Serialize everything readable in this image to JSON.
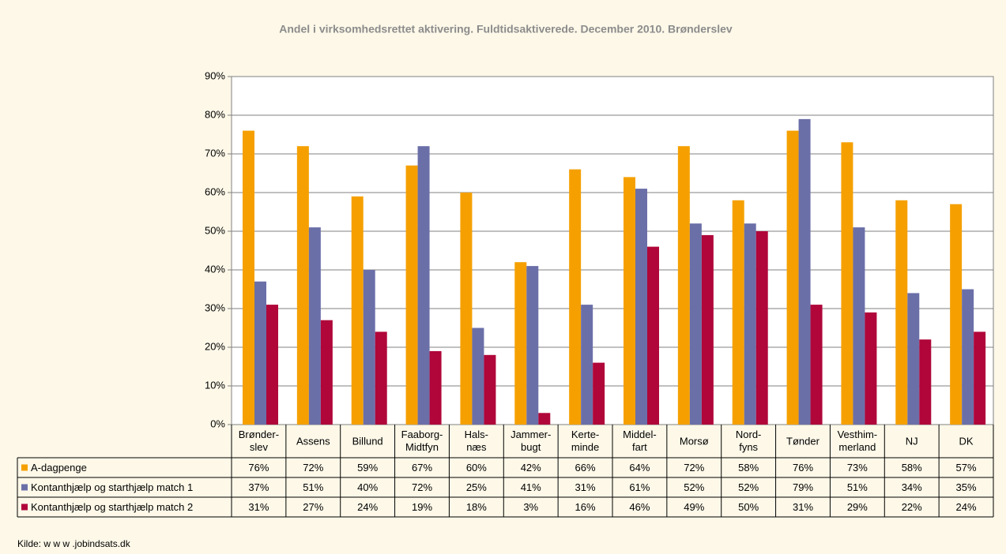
{
  "chart_data": {
    "type": "bar",
    "title": "Andel i virksomhedsrettet aktivering. Fuldtidsaktiverede. December 2010. Brønderslev",
    "categories": [
      "Brønder-\nslev",
      "Assens",
      "Billund",
      "Faaborg-\nMidtfyn",
      "Hals-\nnæs",
      "Jammer-\nbugt",
      "Kerte-\nminde",
      "Middel-\nfart",
      "Morsø",
      "Nord-\nfyns",
      "Tønder",
      "Vesthim-\nmerland",
      "NJ",
      "DK"
    ],
    "series": [
      {
        "name": "A-dagpenge",
        "color": "#f5a000",
        "values": [
          76,
          72,
          59,
          67,
          60,
          42,
          66,
          64,
          72,
          58,
          76,
          73,
          58,
          57
        ],
        "value_labels": [
          "76%",
          "72%",
          "59%",
          "67%",
          "60%",
          "42%",
          "66%",
          "64%",
          "72%",
          "58%",
          "76%",
          "73%",
          "58%",
          "57%"
        ]
      },
      {
        "name": "Kontanthjælp og starthjælp match 1",
        "color": "#6b6fa8",
        "values": [
          37,
          51,
          40,
          72,
          25,
          41,
          31,
          61,
          52,
          52,
          79,
          51,
          34,
          35
        ],
        "value_labels": [
          "37%",
          "51%",
          "40%",
          "72%",
          "25%",
          "41%",
          "31%",
          "61%",
          "52%",
          "52%",
          "79%",
          "51%",
          "34%",
          "35%"
        ]
      },
      {
        "name": "Kontanthjælp og starthjælp match 2",
        "color": "#b0063a",
        "values": [
          31,
          27,
          24,
          19,
          18,
          3,
          16,
          46,
          49,
          50,
          31,
          29,
          22,
          24
        ],
        "value_labels": [
          "31%",
          "27%",
          "24%",
          "19%",
          "18%",
          "3%",
          "16%",
          "46%",
          "49%",
          "50%",
          "31%",
          "29%",
          "22%",
          "24%"
        ]
      }
    ],
    "ylim": [
      0,
      90
    ],
    "yticks": [
      {
        "value": 0,
        "label": "0%"
      },
      {
        "value": 10,
        "label": "10%"
      },
      {
        "value": 20,
        "label": "20%"
      },
      {
        "value": 30,
        "label": "30%"
      },
      {
        "value": 40,
        "label": "40%"
      },
      {
        "value": 50,
        "label": "50%"
      },
      {
        "value": 60,
        "label": "60%"
      },
      {
        "value": 70,
        "label": "70%"
      },
      {
        "value": 80,
        "label": "80%"
      },
      {
        "value": 90,
        "label": "90%"
      }
    ],
    "grid": true,
    "source": "Kilde: w w w .jobindsats.dk"
  }
}
